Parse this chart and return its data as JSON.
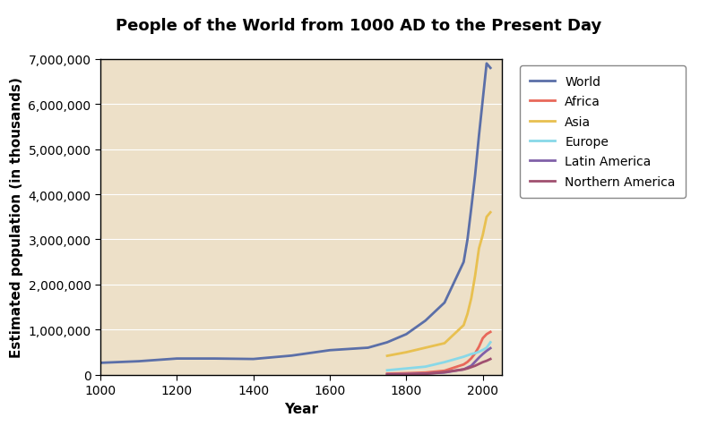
{
  "title": "People of the World from 1000 AD to the Present Day",
  "title_bg_color": "#E8857A",
  "xlabel": "Year",
  "ylabel": "Estimated population (in thousands)",
  "plot_bg_color": "#EDE0C8",
  "fig_bg_color": "#FFFFFF",
  "xlim": [
    1000,
    2050
  ],
  "ylim": [
    0,
    7000000
  ],
  "yticks": [
    0,
    1000000,
    2000000,
    3000000,
    4000000,
    5000000,
    6000000,
    7000000
  ],
  "ytick_labels": [
    "0",
    "1,000,000",
    "2,000,000",
    "3,000,000",
    "4,000,000",
    "5,000,000",
    "6,000,000",
    "7,000,000"
  ],
  "xticks": [
    1000,
    1200,
    1400,
    1600,
    1800,
    2000
  ],
  "series": {
    "World": {
      "color": "#5B6FA8",
      "years": [
        1000,
        1100,
        1200,
        1300,
        1400,
        1500,
        1600,
        1700,
        1750,
        1800,
        1850,
        1900,
        1950,
        1960,
        1970,
        1980,
        1990,
        2000,
        2010,
        2020
      ],
      "values": [
        265000,
        300000,
        360000,
        360000,
        350000,
        425000,
        545000,
        600000,
        720000,
        900000,
        1200000,
        1600000,
        2500000,
        3000000,
        3700000,
        4430000,
        5300000,
        6100000,
        6900000,
        6800000
      ]
    },
    "Africa": {
      "color": "#E8685A",
      "years": [
        1750,
        1800,
        1850,
        1900,
        1950,
        1960,
        1970,
        1980,
        1990,
        2000,
        2010,
        2020
      ],
      "values": [
        25000,
        35000,
        50000,
        90000,
        229000,
        285000,
        366000,
        477000,
        622000,
        811000,
        900000,
        950000
      ]
    },
    "Asia": {
      "color": "#E8C050",
      "years": [
        1750,
        1800,
        1850,
        1900,
        1950,
        1960,
        1970,
        1980,
        1990,
        2000,
        2010,
        2020
      ],
      "values": [
        420000,
        500000,
        600000,
        700000,
        1100000,
        1350000,
        1700000,
        2200000,
        2800000,
        3100000,
        3500000,
        3600000
      ]
    },
    "Europe": {
      "color": "#88D8E8",
      "years": [
        1750,
        1800,
        1850,
        1900,
        1950,
        1960,
        1970,
        1980,
        1990,
        2000,
        2010,
        2020
      ],
      "values": [
        100000,
        140000,
        180000,
        280000,
        400000,
        430000,
        460000,
        480000,
        510000,
        550000,
        600000,
        720000
      ]
    },
    "Latin America": {
      "color": "#8060A8",
      "years": [
        1750,
        1800,
        1850,
        1900,
        1950,
        1960,
        1970,
        1980,
        1990,
        2000,
        2010,
        2020
      ],
      "values": [
        10000,
        15000,
        25000,
        50000,
        120000,
        160000,
        200000,
        290000,
        380000,
        460000,
        530000,
        590000
      ]
    },
    "Northern America": {
      "color": "#A05070",
      "years": [
        1750,
        1800,
        1850,
        1900,
        1950,
        1960,
        1970,
        1980,
        1990,
        2000,
        2010,
        2020
      ],
      "values": [
        2000,
        5000,
        20000,
        60000,
        120000,
        140000,
        170000,
        200000,
        240000,
        280000,
        310000,
        350000
      ]
    }
  },
  "legend_order": [
    "World",
    "Africa",
    "Asia",
    "Europe",
    "Latin America",
    "Northern America"
  ],
  "grid_color": "#FFFFFF",
  "title_fontsize": 13,
  "axis_fontsize": 11,
  "tick_fontsize": 10,
  "legend_fontsize": 10
}
